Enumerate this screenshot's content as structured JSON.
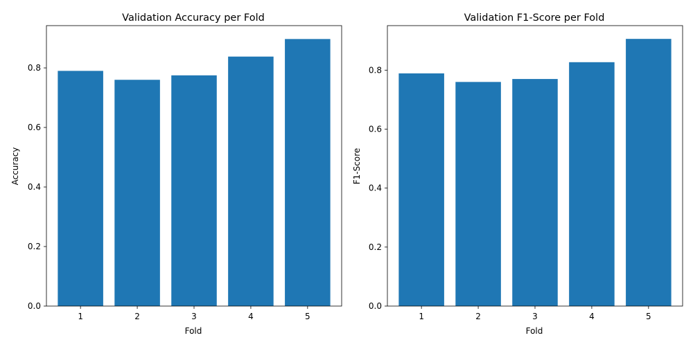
{
  "chart_data": [
    {
      "type": "bar",
      "title": "Validation Accuracy per Fold",
      "xlabel": "Fold",
      "ylabel": "Accuracy",
      "categories": [
        "1",
        "2",
        "3",
        "4",
        "5"
      ],
      "values": [
        0.79,
        0.76,
        0.775,
        0.838,
        0.897
      ],
      "yticks": [
        0.0,
        0.2,
        0.4,
        0.6,
        0.8
      ],
      "ytick_labels": [
        "0.0",
        "0.2",
        "0.4",
        "0.6",
        "0.8"
      ],
      "ylim": [
        0,
        0.942
      ],
      "grid": false,
      "bar_color": "#1f77b4"
    },
    {
      "type": "bar",
      "title": "Validation F1-Score per Fold",
      "xlabel": "Fold",
      "ylabel": "F1-Score",
      "categories": [
        "1",
        "2",
        "3",
        "4",
        "5"
      ],
      "values": [
        0.789,
        0.76,
        0.77,
        0.827,
        0.906
      ],
      "yticks": [
        0.0,
        0.2,
        0.4,
        0.6,
        0.8
      ],
      "ytick_labels": [
        "0.0",
        "0.2",
        "0.4",
        "0.6",
        "0.8"
      ],
      "ylim": [
        0,
        0.951
      ],
      "grid": false,
      "bar_color": "#1f77b4"
    }
  ]
}
